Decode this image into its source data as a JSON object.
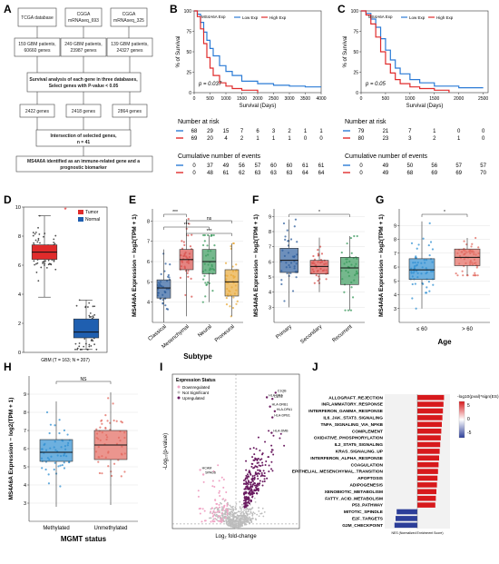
{
  "panels": {
    "A": {
      "label": "A",
      "sources": [
        "TCGA database",
        "CGGA mRNAseq_693",
        "CGGA mRNAseq_325"
      ],
      "samples": [
        "159 GBM patients, 60660 genes",
        "249 GBM patients, 23987 genes",
        "139 GBM patients, 24327 genes"
      ],
      "step1": [
        "Survival analysis of each gene in three databases,",
        "Select genes with P-value < 0.05"
      ],
      "gene_counts": [
        "2422 genes",
        "2418 genes",
        "2864 genes"
      ],
      "intersection": [
        "Intersection of selected genes,",
        "n = 41"
      ],
      "conclusion": [
        "MS4A6A identified as an immune-related gene and a",
        "prognostic biomarker"
      ]
    },
    "B": {
      "label": "B",
      "chart_data": {
        "type": "line",
        "legend_title": "MS4A6A Exp",
        "series": [
          {
            "name": "Low Exp",
            "color": "#2b7bd6",
            "x": [
              0,
              100,
              200,
              300,
              400,
              500,
              600,
              800,
              1000,
              1200,
              1500,
              2000,
              2500,
              3000,
              3500,
              4000
            ],
            "y": [
              100,
              96,
              86,
              74,
              64,
              54,
              45,
              33,
              26,
              21,
              14,
              11,
              9,
              8,
              7,
              7
            ]
          },
          {
            "name": "High Exp",
            "color": "#e02b2b",
            "x": [
              0,
              100,
              200,
              300,
              400,
              500,
              600,
              800,
              1000,
              1200,
              1500,
              2000
            ],
            "y": [
              100,
              93,
              78,
              60,
              43,
              30,
              21,
              12,
              8,
              5,
              3,
              0
            ]
          }
        ],
        "xlabel": "Survival (Days)",
        "ylabel": "% of Survival",
        "xlim": [
          0,
          4000
        ],
        "ylim": [
          0,
          100
        ],
        "xticks": [
          0,
          500,
          1000,
          1500,
          2000,
          2500,
          3000,
          3500,
          4000
        ],
        "yticks": [
          0,
          25,
          50,
          75,
          100
        ],
        "annotation": "p = 0.037"
      },
      "risk_title": "Number at risk",
      "risk_low": [
        "68",
        "29",
        "15",
        "7",
        "6",
        "3",
        "2",
        "1",
        "1"
      ],
      "risk_high": [
        "69",
        "20",
        "4",
        "2",
        "1",
        "1",
        "1",
        "0",
        "0"
      ],
      "cum_title": "Cumulative number of events",
      "cum_low": [
        "0",
        "37",
        "49",
        "56",
        "57",
        "60",
        "60",
        "61",
        "61"
      ],
      "cum_high": [
        "0",
        "48",
        "61",
        "62",
        "63",
        "63",
        "63",
        "64",
        "64"
      ]
    },
    "C": {
      "label": "C",
      "chart_data": {
        "type": "line",
        "legend_title": "MS4A6A Exp",
        "series": [
          {
            "name": "Low Exp",
            "color": "#2b7bd6",
            "x": [
              0,
              100,
              200,
              300,
              400,
              500,
              600,
              700,
              800,
              1000,
              1200,
              1500,
              2000,
              2500
            ],
            "y": [
              100,
              97,
              90,
              80,
              66,
              52,
              40,
              30,
              23,
              16,
              12,
              8,
              6,
              6
            ]
          },
          {
            "name": "High Exp",
            "color": "#e02b2b",
            "x": [
              0,
              100,
              200,
              300,
              400,
              500,
              600,
              700,
              800,
              1000,
              1200,
              1500,
              1800
            ],
            "y": [
              100,
              95,
              84,
              68,
              50,
              35,
              24,
              16,
              11,
              7,
              5,
              3,
              0
            ]
          }
        ],
        "xlabel": "Survival (Days)",
        "ylabel": "% of Survival",
        "xlim": [
          0,
          2600
        ],
        "ylim": [
          0,
          100
        ],
        "xticks": [
          0,
          500,
          1000,
          1500,
          2000,
          2500
        ],
        "yticks": [
          0,
          25,
          50,
          75,
          100
        ],
        "annotation": "p = 0.05"
      },
      "risk_title": "Number at risk",
      "risk_low": [
        "79",
        "21",
        "7",
        "1",
        "0",
        "0"
      ],
      "risk_high": [
        "80",
        "23",
        "3",
        "2",
        "1",
        "0"
      ],
      "cum_title": "Cumulative number of events",
      "cum_low": [
        "0",
        "49",
        "50",
        "56",
        "57",
        "57"
      ],
      "cum_high": [
        "0",
        "49",
        "68",
        "69",
        "69",
        "70"
      ]
    },
    "D": {
      "label": "D",
      "chart_data": {
        "type": "box",
        "categories": [
          "Tumor",
          "Normal"
        ],
        "colors": [
          "#e02b2b",
          "#1f5fb0"
        ],
        "stats": [
          {
            "name": "Tumor",
            "min": 3.8,
            "q1": 6.4,
            "median": 6.9,
            "q3": 7.4,
            "max": 9.4
          },
          {
            "name": "Normal",
            "min": 0.2,
            "q1": 1.0,
            "median": 1.4,
            "q3": 2.3,
            "max": 3.6
          }
        ],
        "ylim": [
          0,
          10
        ],
        "yticks": [
          0,
          2,
          4,
          6,
          8,
          10
        ],
        "xlabel": "GBM (T = 163; N = 207)",
        "significance": "*"
      },
      "legend": [
        "Tumor",
        "Normal"
      ]
    },
    "E": {
      "label": "E",
      "chart_data": {
        "type": "box",
        "categories": [
          "Classical",
          "Mesenchymal",
          "Neural",
          "Proneural"
        ],
        "colors": [
          "#2f5f9e",
          "#d8504c",
          "#3a9a5c",
          "#e8a93a"
        ],
        "stats": [
          {
            "name": "Classical",
            "min": 3.0,
            "q1": 4.2,
            "median": 4.7,
            "q3": 5.1,
            "max": 6.6
          },
          {
            "name": "Mesenchymal",
            "min": 3.3,
            "q1": 5.6,
            "median": 6.1,
            "q3": 6.6,
            "max": 8.1
          },
          {
            "name": "Neural",
            "min": 4.0,
            "q1": 5.4,
            "median": 6.0,
            "q3": 6.6,
            "max": 7.3
          },
          {
            "name": "Proneural",
            "min": 3.3,
            "q1": 4.3,
            "median": 5.0,
            "q3": 5.6,
            "max": 6.9
          }
        ],
        "ylim": [
          3,
          8.6
        ],
        "yticks": [
          4,
          5,
          6,
          7,
          8
        ],
        "xlabel": "Subtype",
        "ylabel": "MS4A6A Expression − log2(TPM + 1)",
        "brackets": [
          {
            "from": 0,
            "to": 1,
            "label": "***"
          },
          {
            "from": 1,
            "to": 3,
            "label": "ns"
          },
          {
            "from": 0,
            "to": 2,
            "label": "***"
          },
          {
            "from": 1,
            "to": 3,
            "label": "***"
          }
        ]
      }
    },
    "F": {
      "label": "F",
      "chart_data": {
        "type": "box",
        "categories": [
          "Primary",
          "Secondary",
          "Recurrent"
        ],
        "colors": [
          "#2f5f9e",
          "#d8504c",
          "#3a9a5c"
        ],
        "stats": [
          {
            "name": "Primary",
            "min": 3.0,
            "q1": 5.3,
            "median": 6.1,
            "q3": 6.9,
            "max": 8.8
          },
          {
            "name": "Secondary",
            "min": 4.0,
            "q1": 5.2,
            "median": 5.7,
            "q3": 6.1,
            "max": 7.6
          },
          {
            "name": "Recurrent",
            "min": 2.8,
            "q1": 4.5,
            "median": 5.6,
            "q3": 6.3,
            "max": 7.7
          }
        ],
        "ylim": [
          2,
          9.5
        ],
        "yticks": [
          3,
          4,
          5,
          6,
          7,
          8,
          9
        ],
        "ylabel": "MS4A6A Expression − log2(TPM + 1)",
        "brackets": [
          {
            "from": 0,
            "to": 2,
            "label": "*"
          }
        ]
      }
    },
    "G": {
      "label": "G",
      "chart_data": {
        "type": "box",
        "categories": [
          "≤ 60",
          "> 60"
        ],
        "colors": [
          "#2f8fd1",
          "#e2685e"
        ],
        "stats": [
          {
            "name": "≤ 60",
            "min": 3.0,
            "q1": 5.1,
            "median": 5.8,
            "q3": 6.6,
            "max": 9.3
          },
          {
            "name": "> 60",
            "min": 5.4,
            "q1": 6.1,
            "median": 6.7,
            "q3": 7.3,
            "max": 8.1
          }
        ],
        "ylim": [
          2,
          10.2
        ],
        "yticks": [
          3,
          4,
          5,
          6,
          7,
          8,
          9
        ],
        "xlabel": "Age",
        "ylabel": "MS4A6A Expression − log2(TPM + 1)",
        "brackets": [
          {
            "from": 0,
            "to": 1,
            "label": "*"
          }
        ]
      }
    },
    "H": {
      "label": "H",
      "chart_data": {
        "type": "box",
        "categories": [
          "Methylated",
          "Unmethylated"
        ],
        "colors": [
          "#2f8fd1",
          "#e2685e"
        ],
        "stats": [
          {
            "name": "Methylated",
            "min": 2.8,
            "q1": 5.3,
            "median": 5.8,
            "q3": 6.5,
            "max": 8.6
          },
          {
            "name": "Unmethylated",
            "min": 2.9,
            "q1": 5.4,
            "median": 6.2,
            "q3": 7.0,
            "max": 9.1
          }
        ],
        "ylim": [
          2,
          10
        ],
        "yticks": [
          3,
          4,
          5,
          6,
          7,
          8,
          9
        ],
        "xlabel": "MGMT status",
        "ylabel": "MS4A6A Expression − log2(TPM + 1)",
        "brackets": [
          {
            "from": 0,
            "to": 1,
            "label": "NS"
          }
        ]
      }
    },
    "I": {
      "label": "I",
      "chart_data": {
        "type": "scatter",
        "legend_title": "Expression Status",
        "legend": [
          {
            "name": "Downregulated",
            "color": "#f0a3c4"
          },
          {
            "name": "Not Significant",
            "color": "#bdbdbd"
          },
          {
            "name": "Upregulated",
            "color": "#6a1b60"
          }
        ],
        "xlabel": "Log₂ fold-change",
        "ylabel": "-Log₁₀(p-value)",
        "xlim": [
          -8,
          8
        ],
        "ylim": [
          0,
          100
        ],
        "labeled_points": [
          {
            "label": "HLA-DRA",
            "x": 3.9,
            "y": 85
          },
          {
            "label": "HLA-DRB1",
            "x": 4.3,
            "y": 79
          },
          {
            "label": "HLA-DPB1",
            "x": 4.6,
            "y": 72
          },
          {
            "label": "HLA-DMB",
            "x": 4.5,
            "y": 62
          },
          {
            "label": "C1QB",
            "x": 5.0,
            "y": 88
          },
          {
            "label": "CD74",
            "x": 4.6,
            "y": 84
          },
          {
            "label": "HLA-DPA1",
            "x": 4.9,
            "y": 76
          },
          {
            "label": "HCAM",
            "x": -4.5,
            "y": 38
          },
          {
            "label": "SPAG6",
            "x": -4.1,
            "y": 35
          }
        ]
      }
    },
    "J": {
      "label": "J",
      "chart_data": {
        "type": "bar",
        "orientation": "horizontal",
        "categories": [
          "ALLOGRAFT_REJECTION",
          "INFLAMMATORY_RESPONSE",
          "INTERFERON_GAMMA_RESPONSE",
          "IL6_JAK_STAT3_SIGNALING",
          "TNFA_SIGNALING_VIA_NFKB",
          "COMPLEMENT",
          "OXIDATIVE_PHOSPHORYLATION",
          "IL2_STAT5_SIGNALING",
          "KRAS_SIGNALING_UP",
          "INTERFERON_ALPHA_RESPONSE",
          "COAGULATION",
          "EPITHELIAL_MESENCHYMAL_TRANSITION",
          "APOPTOSIS",
          "ADIPOGENESIS",
          "XENOBIOTIC_METABOLISM",
          "FATTY_ACID_METABOLISM",
          "P53_PATHWAY",
          "MITOTIC_SPINDLE",
          "E2F_TARGETS",
          "G2M_CHECKPOINT"
        ],
        "values": [
          2.45,
          2.4,
          2.35,
          2.3,
          2.25,
          2.2,
          2.15,
          2.1,
          2.05,
          2.0,
          1.95,
          1.9,
          1.85,
          1.8,
          1.75,
          1.7,
          1.65,
          -1.9,
          -2.0,
          -2.1
        ],
        "colors": [
          "#d7191c",
          "#d7191c",
          "#d7191c",
          "#d7191c",
          "#d7191c",
          "#d7191c",
          "#d7191c",
          "#d7191c",
          "#d7191c",
          "#d7191c",
          "#d7191c",
          "#d7191c",
          "#d7191c",
          "#d7191c",
          "#d7191c",
          "#d7191c",
          "#d7191c",
          "#2c3e99",
          "#2c3e99",
          "#2c3e99"
        ],
        "xlim": [
          -3,
          3
        ],
        "xlabel": "NES (Normalized Enrichment Score)",
        "legend_title": "-log10(pval)*sign(ES)",
        "legend_ticks": [
          "5",
          "0",
          "-5"
        ]
      }
    }
  }
}
